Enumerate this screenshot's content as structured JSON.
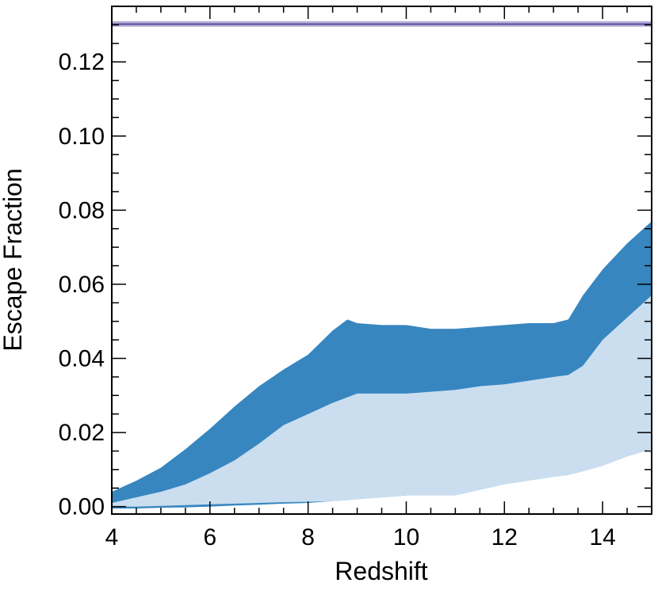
{
  "chart_data": {
    "type": "area",
    "xlabel": "Redshift",
    "ylabel": "Escape Fraction",
    "xlim": [
      4,
      15
    ],
    "ylim": [
      -0.002,
      0.135
    ],
    "xticks": [
      4,
      6,
      8,
      10,
      12,
      14
    ],
    "xtick_labels": [
      "4",
      "6",
      "8",
      "10",
      "12",
      "14"
    ],
    "yticks": [
      0.0,
      0.02,
      0.04,
      0.06,
      0.08,
      0.1,
      0.12
    ],
    "ytick_labels": [
      "0.00",
      "0.02",
      "0.04",
      "0.06",
      "0.08",
      "0.10",
      "0.12"
    ],
    "grid": false,
    "colors": {
      "dark_band": "#3786c0",
      "light_band": "#cadef0",
      "reference_band": "#b5b0d6",
      "reference_line": "#5b4fa0",
      "axes": "#000000"
    },
    "bands": [
      {
        "role": "outer",
        "x": [
          4.0,
          4.5,
          5.0,
          5.5,
          6.0,
          6.5,
          7.0,
          7.5,
          8.0,
          8.5,
          8.8,
          9.0,
          9.5,
          10.0,
          10.5,
          11.0,
          11.5,
          12.0,
          12.5,
          13.0,
          13.3,
          13.6,
          14.0,
          14.5,
          15.0
        ],
        "upper": [
          0.004,
          0.007,
          0.0105,
          0.0155,
          0.021,
          0.027,
          0.0325,
          0.037,
          0.041,
          0.0475,
          0.0505,
          0.0495,
          0.049,
          0.049,
          0.048,
          0.048,
          0.0485,
          0.049,
          0.0495,
          0.0495,
          0.0505,
          0.057,
          0.064,
          0.071,
          0.077
        ],
        "lower": [
          -0.0005,
          -0.0005,
          -0.0003,
          -0.0002,
          0.0,
          0.0003,
          0.0005,
          0.0008,
          0.001,
          0.0015,
          0.0018,
          0.002,
          0.0025,
          0.003,
          0.004,
          0.005,
          0.0065,
          0.008,
          0.0095,
          0.011,
          0.0125,
          0.0145,
          0.0165,
          0.0185,
          0.0205
        ]
      },
      {
        "role": "inner",
        "x": [
          4.0,
          4.5,
          5.0,
          5.5,
          6.0,
          6.5,
          7.0,
          7.5,
          8.0,
          8.5,
          8.8,
          9.0,
          9.5,
          10.0,
          10.5,
          11.0,
          11.5,
          12.0,
          12.5,
          13.0,
          13.3,
          13.6,
          14.0,
          14.5,
          15.0
        ],
        "upper": [
          0.001,
          0.0025,
          0.004,
          0.006,
          0.009,
          0.0125,
          0.017,
          0.022,
          0.025,
          0.028,
          0.0295,
          0.0305,
          0.0305,
          0.0305,
          0.031,
          0.0315,
          0.0325,
          0.033,
          0.034,
          0.035,
          0.0355,
          0.038,
          0.045,
          0.051,
          0.057
        ],
        "lower": [
          0.0,
          0.0,
          0.0002,
          0.0004,
          0.0006,
          0.0008,
          0.001,
          0.0012,
          0.0013,
          0.0015,
          0.0017,
          0.002,
          0.0025,
          0.003,
          0.003,
          0.003,
          0.0045,
          0.006,
          0.007,
          0.008,
          0.0085,
          0.0095,
          0.011,
          0.0135,
          0.0155
        ]
      }
    ],
    "reference_band": {
      "low": 0.1295,
      "high": 0.131,
      "value": 0.1302
    }
  }
}
